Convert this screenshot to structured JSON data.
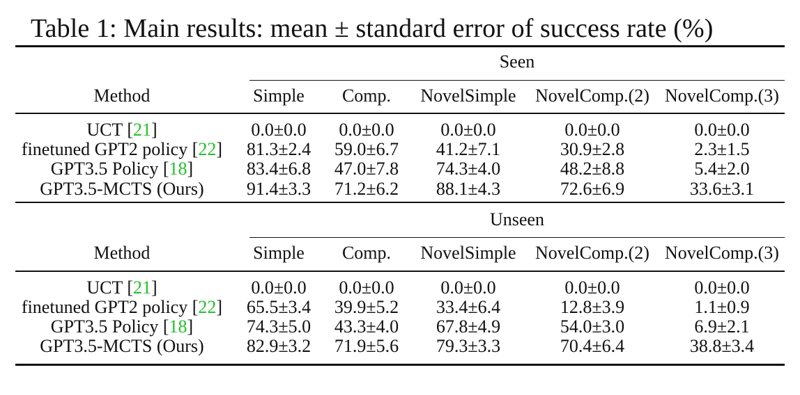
{
  "caption": "Table 1: Main results: mean ± standard error of success rate (%)",
  "columns": [
    "Simple",
    "Comp.",
    "NovelSimple",
    "NovelComp.(2)",
    "NovelComp.(3)"
  ],
  "method_header": "Method",
  "sections": [
    {
      "group_label": "Seen",
      "rows": [
        {
          "method": "UCT",
          "cite": "21",
          "values": [
            "0.0±0.0",
            "0.0±0.0",
            "0.0±0.0",
            "0.0±0.0",
            "0.0±0.0"
          ]
        },
        {
          "method": "finetuned GPT2 policy",
          "cite": "22",
          "values": [
            "81.3±2.4",
            "59.0±6.7",
            "41.2±7.1",
            "30.9±2.8",
            "2.3±1.5"
          ]
        },
        {
          "method": "GPT3.5 Policy",
          "cite": "18",
          "values": [
            "83.4±6.8",
            "47.0±7.8",
            "74.3±4.0",
            "48.2±8.8",
            "5.4±2.0"
          ]
        },
        {
          "method": "GPT3.5-MCTS (Ours)",
          "cite": "",
          "values": [
            "91.4±3.3",
            "71.2±6.2",
            "88.1±4.3",
            "72.6±6.9",
            "33.6±3.1"
          ]
        }
      ]
    },
    {
      "group_label": "Unseen",
      "rows": [
        {
          "method": "UCT",
          "cite": "21",
          "values": [
            "0.0±0.0",
            "0.0±0.0",
            "0.0±0.0",
            "0.0±0.0",
            "0.0±0.0"
          ]
        },
        {
          "method": "finetuned GPT2 policy",
          "cite": "22",
          "values": [
            "65.5±3.4",
            "39.9±5.2",
            "33.4±6.4",
            "12.8±3.9",
            "1.1±0.9"
          ]
        },
        {
          "method": "GPT3.5 Policy",
          "cite": "18",
          "values": [
            "74.3±5.0",
            "43.3±4.0",
            "67.8±4.9",
            "54.0±3.0",
            "6.9±2.1"
          ]
        },
        {
          "method": "GPT3.5-MCTS (Ours)",
          "cite": "",
          "values": [
            "82.9±3.2",
            "71.9±5.6",
            "79.3±3.3",
            "70.4±6.4",
            "38.8±3.4"
          ]
        }
      ]
    }
  ]
}
